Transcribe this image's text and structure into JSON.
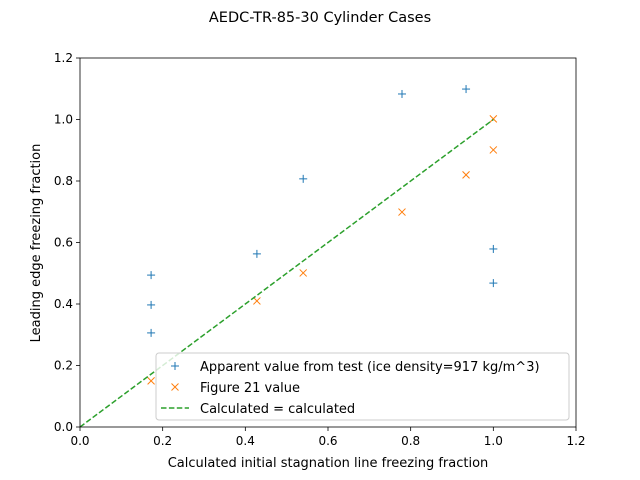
{
  "chart_data": {
    "type": "scatter",
    "title": "AEDC-TR-85-30 Cylinder Cases",
    "xlabel": "Calculated initial stagnation line freezing fraction",
    "ylabel": "Leading edge freezing fraction",
    "xlim": [
      0,
      1.2
    ],
    "ylim": [
      0,
      1.2
    ],
    "xticks": [
      "0.0",
      "0.2",
      "0.4",
      "0.6",
      "0.8",
      "1.0",
      "1.2"
    ],
    "yticks": [
      "0.0",
      "0.2",
      "0.4",
      "0.6",
      "0.8",
      "1.0",
      "1.2"
    ],
    "grid": false,
    "legend_position": "lower right",
    "series": [
      {
        "name": "Apparent value from test (ice density=917 kg/m^3)",
        "marker": "plus",
        "color": "#1f77b4",
        "x": [
          0.172,
          0.172,
          0.172,
          0.428,
          0.54,
          0.779,
          0.934,
          1.0,
          1.0
        ],
        "y": [
          0.494,
          0.397,
          0.306,
          0.563,
          0.807,
          1.083,
          1.099,
          0.579,
          0.468
        ]
      },
      {
        "name": "Figure 21 value",
        "marker": "x",
        "color": "#ff7f0e",
        "x": [
          0.172,
          0.428,
          0.54,
          0.779,
          0.934,
          1.0,
          1.0
        ],
        "y": [
          0.15,
          0.41,
          0.501,
          0.699,
          0.82,
          0.901,
          1.002
        ]
      },
      {
        "name": "Calculated = calculated",
        "marker": "dashed-line",
        "color": "#2ca02c",
        "x": [
          0,
          1
        ],
        "y": [
          0,
          1
        ]
      }
    ]
  }
}
